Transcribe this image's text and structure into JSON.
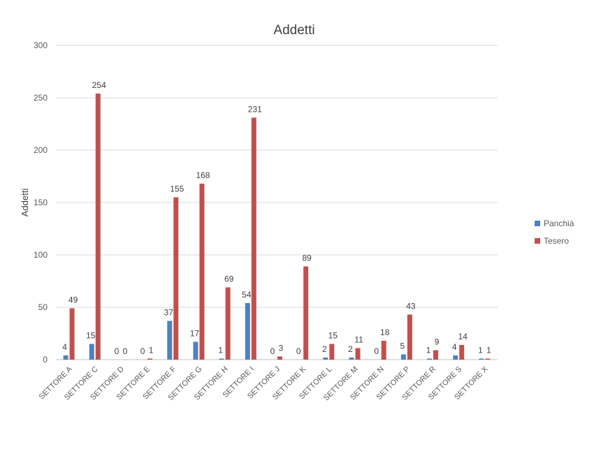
{
  "chart_data": {
    "type": "bar",
    "title": "Addetti",
    "xlabel": "",
    "ylabel": "Addetti",
    "ylim": [
      0,
      300
    ],
    "yticks": [
      0,
      50,
      100,
      150,
      200,
      250,
      300
    ],
    "grid": true,
    "legend_position": "right",
    "categories": [
      "SETTORE A",
      "SETTORE C",
      "SETTORE D",
      "SETTORE E",
      "SETTORE F",
      "SETTORE G",
      "SETTORE H",
      "SETTORE I",
      "SETTORE J",
      "SETTORE K",
      "SETTORE L",
      "SETTORE M",
      "SETTORE N",
      "SETTORE P",
      "SETTORE R",
      "SETTORE S",
      "SETTORE X"
    ],
    "series": [
      {
        "name": "Panchià",
        "color": "#4f81bd",
        "values": [
          4,
          15,
          0,
          0,
          37,
          17,
          1,
          54,
          0,
          0,
          2,
          2,
          0,
          5,
          1,
          4,
          1
        ]
      },
      {
        "name": "Tesero",
        "color": "#c0504d",
        "values": [
          49,
          254,
          0,
          1,
          155,
          168,
          69,
          231,
          3,
          89,
          15,
          11,
          18,
          43,
          9,
          14,
          1
        ]
      }
    ]
  }
}
